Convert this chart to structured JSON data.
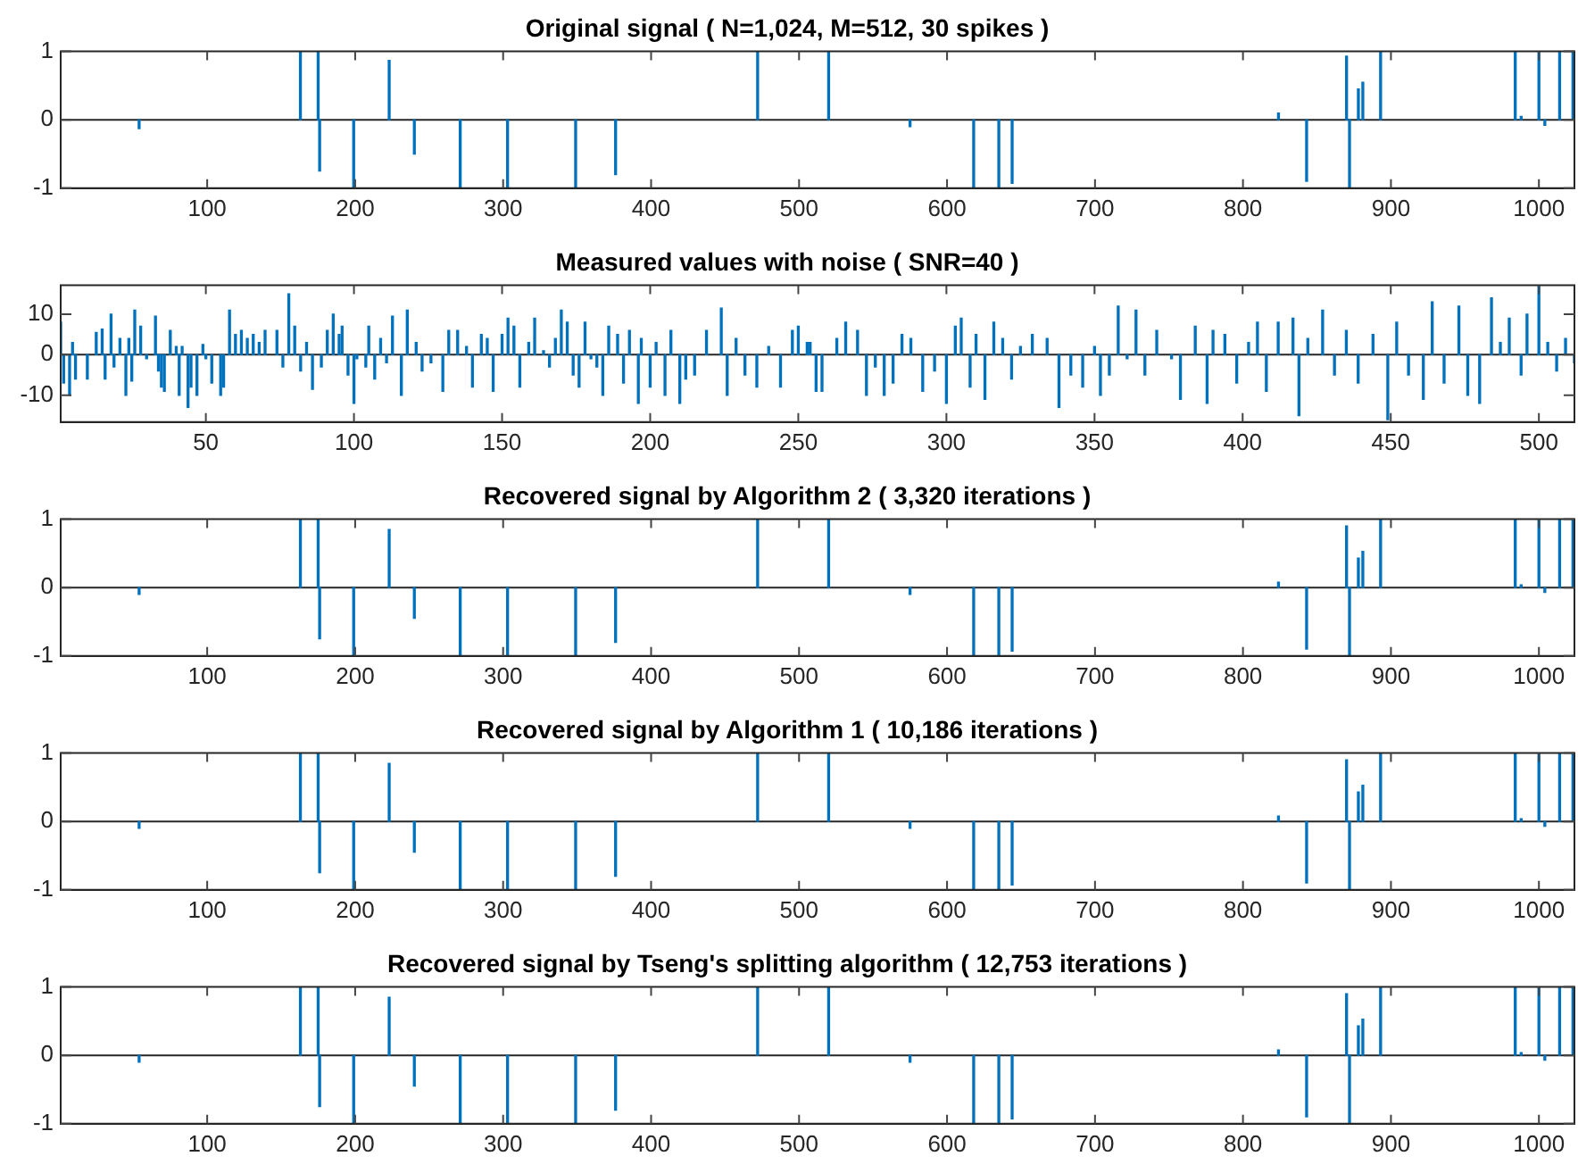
{
  "chart_data": [
    {
      "type": "bar",
      "title": "Original signal ( N=1,024, M=512, 30 spikes )",
      "color": "#0072bd",
      "xlim": [
        1,
        1024
      ],
      "xticks": [
        100,
        200,
        300,
        400,
        500,
        600,
        700,
        800,
        900,
        1000
      ],
      "ylim": [
        -1,
        1
      ],
      "yticks": [
        -1,
        0,
        1
      ],
      "grid": false,
      "ref_lines": [
        {
          "axis": "y",
          "value": 0,
          "color": "#262626"
        }
      ],
      "x": [
        54,
        163,
        175,
        176,
        199,
        223,
        240,
        271,
        303,
        349,
        376,
        472,
        520,
        575,
        618,
        635,
        644,
        824,
        843,
        870,
        872,
        878,
        881,
        893,
        984,
        988,
        1000,
        1004,
        1014,
        1023
      ],
      "values": [
        -0.13,
        1,
        1,
        -0.75,
        -1,
        0.87,
        -0.5,
        -1,
        -1,
        -1,
        -0.8,
        1,
        1,
        -0.1,
        -1,
        -1,
        -0.93,
        0.1,
        -0.9,
        0.93,
        -1,
        0.45,
        0.55,
        1,
        1,
        0.05,
        1,
        -0.08,
        1,
        1
      ]
    },
    {
      "type": "bar",
      "title": "Measured values with noise ( SNR=40 )",
      "color": "#0072bd",
      "xlim": [
        1,
        512
      ],
      "xticks": [
        50,
        100,
        150,
        200,
        250,
        300,
        350,
        400,
        450,
        500
      ],
      "ylim": [
        -16.6,
        17.1
      ],
      "yticks": [
        -10,
        0,
        10
      ],
      "grid": false,
      "ref_lines": [
        {
          "axis": "y",
          "value": 0,
          "color": "#262626"
        }
      ],
      "x": [
        1,
        2,
        4,
        5,
        6,
        10,
        13,
        15,
        16,
        18,
        19,
        21,
        23,
        24,
        25,
        26,
        28,
        30,
        33,
        34,
        35,
        36,
        38,
        40,
        41,
        42,
        44,
        45,
        47,
        49,
        50,
        52,
        55,
        56,
        58,
        60,
        62,
        64,
        66,
        68,
        70,
        74,
        76,
        78,
        80,
        82,
        84,
        86,
        89,
        91,
        93,
        95,
        96,
        98,
        100,
        101,
        104,
        105,
        107,
        109,
        111,
        113,
        116,
        118,
        121,
        123,
        126,
        130,
        132,
        135,
        138,
        140,
        143,
        145,
        147,
        150,
        152,
        154,
        156,
        159,
        161,
        164,
        166,
        168,
        170,
        172,
        174,
        176,
        178,
        180,
        182,
        184,
        186,
        189,
        191,
        193,
        196,
        197,
        200,
        202,
        205,
        207,
        210,
        212,
        215,
        219,
        224,
        226,
        229,
        232,
        236,
        240,
        244,
        248,
        250,
        253,
        254,
        256,
        258,
        263,
        266,
        270,
        273,
        276,
        279,
        282,
        285,
        288,
        292,
        296,
        300,
        303,
        305,
        308,
        310,
        313,
        316,
        319,
        322,
        325,
        329,
        334,
        338,
        342,
        346,
        350,
        352,
        355,
        358,
        361,
        364,
        367,
        371,
        376,
        379,
        384,
        388,
        390,
        394,
        398,
        402,
        405,
        408,
        412,
        417,
        419,
        422,
        427,
        431,
        435,
        439,
        444,
        449,
        452,
        456,
        461,
        464,
        468,
        473,
        476,
        480,
        484,
        487,
        490,
        494,
        496,
        500,
        503,
        506,
        509,
        512
      ],
      "values": [
        8,
        -7,
        -10,
        3,
        -6,
        -6,
        5.5,
        6.3,
        -6,
        10,
        -3,
        4,
        -10,
        4,
        -6.5,
        11,
        7,
        -1,
        9.5,
        -4,
        -8,
        -9,
        6,
        2,
        -10,
        2,
        -13,
        -8,
        -10,
        2.5,
        -1,
        -7,
        -10,
        -8,
        11,
        5,
        6,
        4,
        5,
        3,
        6,
        6,
        -3,
        15,
        7,
        -4,
        3,
        -8.5,
        -3,
        6,
        10,
        5,
        7,
        -5,
        -12,
        -1,
        -3,
        7,
        -6,
        4,
        -2,
        9.5,
        -10,
        11,
        3,
        -4,
        -2,
        -9,
        6,
        6,
        2,
        -8,
        5,
        4,
        -9,
        5,
        9,
        7,
        -8,
        3,
        9,
        1,
        -3,
        4,
        11,
        8,
        -5,
        -8,
        8,
        -1,
        -3,
        -10,
        7,
        5,
        -7,
        6,
        -12,
        4,
        -8,
        3,
        -10,
        6,
        -12,
        -6,
        -5,
        6,
        11.5,
        -10,
        4,
        -5,
        -8,
        2,
        -8,
        6,
        7,
        3,
        3,
        -9,
        -9,
        4,
        8,
        6,
        -10,
        -3,
        -10,
        -7,
        5,
        4,
        -9,
        -4,
        -12,
        7,
        9,
        -8,
        5,
        -11,
        8,
        4,
        -6,
        2,
        5,
        4,
        -13,
        -5,
        -8,
        2,
        -10,
        -5,
        12,
        -1,
        11,
        -5,
        6,
        -1,
        -11,
        7,
        -12,
        6,
        5,
        -7,
        3,
        8,
        -9,
        8,
        9,
        -15,
        4,
        11,
        -5,
        6,
        -7,
        5,
        -16,
        8,
        -5,
        -11,
        13,
        -7,
        12,
        -10,
        -12,
        14,
        3,
        9,
        -5,
        10,
        17,
        3,
        -4,
        4,
        -2
      ]
    },
    {
      "type": "bar",
      "title": "Recovered signal by Algorithm 2 ( 3,320 iterations )",
      "color": "#0072bd",
      "xlim": [
        1,
        1024
      ],
      "xticks": [
        100,
        200,
        300,
        400,
        500,
        600,
        700,
        800,
        900,
        1000
      ],
      "ylim": [
        -1,
        1
      ],
      "yticks": [
        -1,
        0,
        1
      ],
      "grid": false,
      "ref_lines": [
        {
          "axis": "y",
          "value": 0,
          "color": "#262626"
        }
      ],
      "x": [
        54,
        163,
        175,
        176,
        199,
        223,
        240,
        271,
        303,
        349,
        376,
        472,
        520,
        575,
        618,
        635,
        644,
        824,
        843,
        870,
        872,
        878,
        881,
        893,
        984,
        988,
        1000,
        1004,
        1014,
        1023
      ],
      "values": [
        -0.1,
        1,
        1,
        -0.75,
        -1,
        0.85,
        -0.45,
        -1,
        -1,
        -1,
        -0.8,
        1,
        1,
        -0.1,
        -1,
        -1,
        -0.93,
        0.08,
        -0.9,
        0.9,
        -1,
        0.43,
        0.53,
        1,
        1,
        0.04,
        1,
        -0.07,
        1,
        1
      ]
    },
    {
      "type": "bar",
      "title": "Recovered signal by Algorithm 1 ( 10,186 iterations )",
      "color": "#0072bd",
      "xlim": [
        1,
        1024
      ],
      "xticks": [
        100,
        200,
        300,
        400,
        500,
        600,
        700,
        800,
        900,
        1000
      ],
      "ylim": [
        -1,
        1
      ],
      "yticks": [
        -1,
        0,
        1
      ],
      "grid": false,
      "ref_lines": [
        {
          "axis": "y",
          "value": 0,
          "color": "#262626"
        }
      ],
      "x": [
        54,
        163,
        175,
        176,
        199,
        223,
        240,
        271,
        303,
        349,
        376,
        472,
        520,
        575,
        618,
        635,
        644,
        824,
        843,
        870,
        872,
        878,
        881,
        893,
        984,
        988,
        1000,
        1004,
        1014,
        1023
      ],
      "values": [
        -0.1,
        1,
        1,
        -0.75,
        -1,
        0.85,
        -0.45,
        -1,
        -1,
        -1,
        -0.8,
        1,
        1,
        -0.1,
        -1,
        -1,
        -0.93,
        0.08,
        -0.9,
        0.9,
        -1,
        0.43,
        0.53,
        1,
        1,
        0.04,
        1,
        -0.07,
        1,
        1
      ]
    },
    {
      "type": "bar",
      "title": "Recovered signal by Tseng's splitting algorithm ( 12,753 iterations )",
      "color": "#0072bd",
      "xlim": [
        1,
        1024
      ],
      "xticks": [
        100,
        200,
        300,
        400,
        500,
        600,
        700,
        800,
        900,
        1000
      ],
      "ylim": [
        -1,
        1
      ],
      "yticks": [
        -1,
        0,
        1
      ],
      "grid": false,
      "ref_lines": [
        {
          "axis": "y",
          "value": 0,
          "color": "#262626"
        }
      ],
      "x": [
        54,
        163,
        175,
        176,
        199,
        223,
        240,
        271,
        303,
        349,
        376,
        472,
        520,
        575,
        618,
        635,
        644,
        824,
        843,
        870,
        872,
        878,
        881,
        893,
        984,
        988,
        1000,
        1004,
        1014,
        1023
      ],
      "values": [
        -0.1,
        1,
        1,
        -0.75,
        -1,
        0.85,
        -0.45,
        -1,
        -1,
        -1,
        -0.8,
        1,
        1,
        -0.1,
        -1,
        -1,
        -0.93,
        0.08,
        -0.9,
        0.9,
        -1,
        0.43,
        0.53,
        1,
        1,
        0.04,
        1,
        -0.07,
        1,
        1
      ]
    }
  ]
}
